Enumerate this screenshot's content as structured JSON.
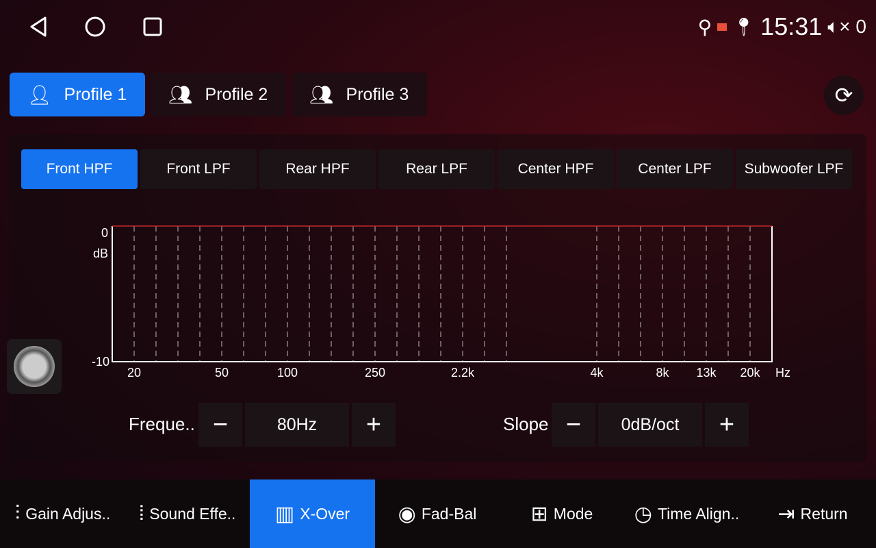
{
  "status": {
    "time": "15:31",
    "volume": "0",
    "icons": [
      "usb-icon",
      "cast-icon",
      "location-icon",
      "volume-mute-icon"
    ]
  },
  "profiles": [
    {
      "label": "Profile 1",
      "active": true
    },
    {
      "label": "Profile 2"
    },
    {
      "label": "Profile 3"
    }
  ],
  "filters": [
    {
      "label": "Front HPF",
      "active": true
    },
    {
      "label": "Front LPF"
    },
    {
      "label": "Rear HPF"
    },
    {
      "label": "Rear LPF"
    },
    {
      "label": "Center HPF"
    },
    {
      "label": "Center LPF"
    },
    {
      "label": "Subwoofer LPF"
    }
  ],
  "graph": {
    "y_top": "0",
    "y_unit": "dB",
    "y_bottom": "-10",
    "x_unit": "Hz",
    "x_ticks": [
      "20",
      "50",
      "100",
      "250",
      "2.2k",
      "4k",
      "8k",
      "13k",
      "20k"
    ],
    "curve_db": 0,
    "curve_color": "#c0282c"
  },
  "frequency": {
    "label": "Freque..",
    "value": "80Hz",
    "minus": "−",
    "plus": "+"
  },
  "slope": {
    "label": "Slope",
    "value": "0dB/oct",
    "minus": "−",
    "plus": "+"
  },
  "bottom_nav": [
    {
      "label": "Gain Adjus..",
      "icon": "sliders-icon"
    },
    {
      "label": "Sound Effe..",
      "icon": "waveform-icon"
    },
    {
      "label": "X-Over",
      "icon": "equalizer-icon",
      "active": true
    },
    {
      "label": "Fad-Bal",
      "icon": "surround-icon"
    },
    {
      "label": "Mode",
      "icon": "mode-icon"
    },
    {
      "label": "Time Align..",
      "icon": "timer-icon"
    },
    {
      "label": "Return",
      "icon": "return-icon"
    }
  ],
  "accent": "#1673f0"
}
